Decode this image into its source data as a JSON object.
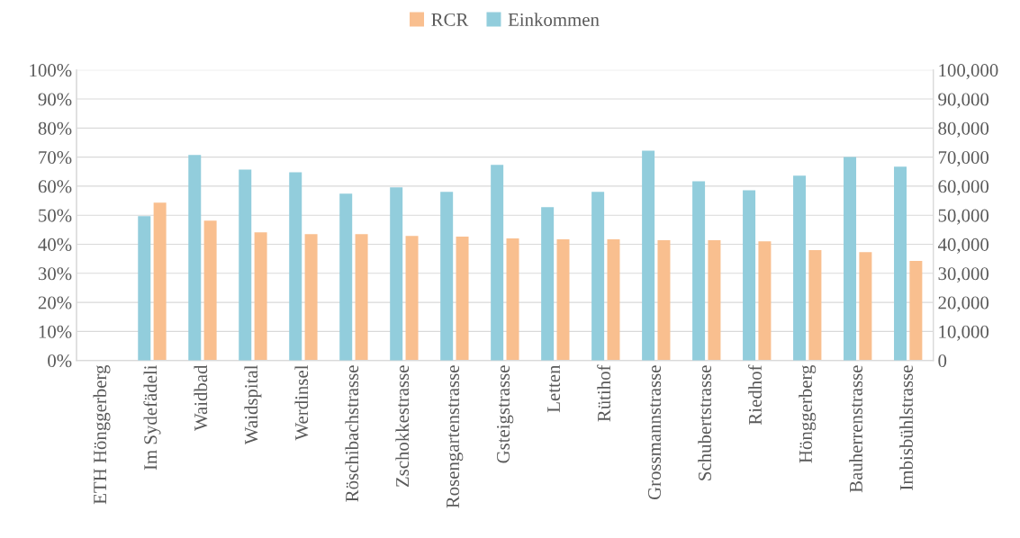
{
  "chart_data": {
    "type": "bar",
    "categories": [
      "ETH Hönggerberg",
      "Im Sydefädeli",
      "Waidbad",
      "Waidspital",
      "Werdinsel",
      "Röschibachstrasse",
      "Zschokkestrasse",
      "Rosengartenstrasse",
      "Gsteigstrasse",
      "Letten",
      "Rütihof",
      "Grossmannstrasse",
      "Schubertstrasse",
      "Riedhof",
      "Hönggerberg",
      "Bauherrenstrasse",
      "Imbisbühlstrasse"
    ],
    "series": [
      {
        "name": "RCR",
        "color": "#f9bf8f",
        "values": [
          null,
          54.3,
          48.1,
          44.1,
          43.5,
          43.5,
          42.9,
          42.6,
          42.0,
          41.7,
          41.7,
          41.4,
          41.4,
          41.0,
          38.0,
          37.3,
          34.3
        ]
      },
      {
        "name": "Einkommen",
        "color": "#92cddc",
        "axis": "y2",
        "values": [
          null,
          49700,
          70700,
          65700,
          64800,
          57400,
          59600,
          58000,
          67300,
          52800,
          58000,
          72200,
          61700,
          58600,
          63600,
          70000,
          66700
        ]
      }
    ],
    "ylim": [
      0,
      100
    ],
    "yticks": [
      {
        "value": 0,
        "label": "0%"
      },
      {
        "value": 10,
        "label": "10%"
      },
      {
        "value": 20,
        "label": "20%"
      },
      {
        "value": 30,
        "label": "30%"
      },
      {
        "value": 40,
        "label": "40%"
      },
      {
        "value": 50,
        "label": "50%"
      },
      {
        "value": 60,
        "label": "60%"
      },
      {
        "value": 70,
        "label": "70%"
      },
      {
        "value": 80,
        "label": "80%"
      },
      {
        "value": 90,
        "label": "90%"
      },
      {
        "value": 100,
        "label": "100%"
      }
    ],
    "y2lim": [
      0,
      100000
    ],
    "y2ticks": [
      0,
      {
        "value": 10000,
        "label": "10,000"
      },
      {
        "value": 20000,
        "label": "20,000"
      },
      {
        "value": 30000,
        "label": "30,000"
      },
      {
        "value": 40000,
        "label": "40,000"
      },
      {
        "value": 50000,
        "label": "50,000"
      },
      {
        "value": 60000,
        "label": "60,000"
      },
      {
        "value": 70000,
        "label": "70,000"
      },
      {
        "value": 80000,
        "label": "80,000"
      },
      {
        "value": 90000,
        "label": "90,000"
      },
      {
        "value": 100000,
        "label": "100,000"
      }
    ],
    "grid": "y",
    "legend": "top"
  }
}
